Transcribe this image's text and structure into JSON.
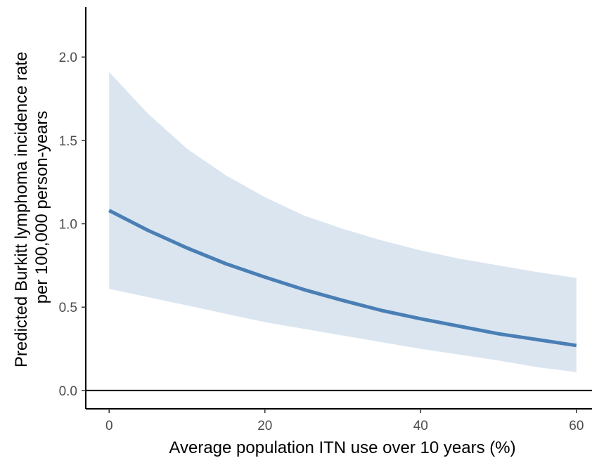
{
  "chart_data": {
    "type": "line",
    "title": "",
    "xlabel": "Average population ITN use over 10 years (%)",
    "ylabel_lines": [
      "Predicted Burkitt lymphoma incidence rate",
      "per 100,000 person-years"
    ],
    "xlim": [
      -3,
      62
    ],
    "ylim": [
      -0.11,
      2.3
    ],
    "x_ticks": [
      0,
      20,
      40,
      60
    ],
    "x_tick_labels": [
      "0",
      "20",
      "40",
      "60"
    ],
    "y_ticks": [
      0.0,
      0.5,
      1.0,
      1.5,
      2.0
    ],
    "y_tick_labels": [
      "0.0",
      "0.5",
      "1.0",
      "1.5",
      "2.0"
    ],
    "reference_line_y": 0,
    "grid": false,
    "legend": "none",
    "colors": {
      "line": "#4a7fb5",
      "ribbon": "#dae5f0",
      "axis": "#000000"
    },
    "series": [
      {
        "x": [
          0,
          5,
          10,
          15,
          20,
          25,
          30,
          35,
          40,
          45,
          50,
          55,
          60
        ],
        "y": [
          1.08,
          0.96,
          0.855,
          0.76,
          0.68,
          0.605,
          0.54,
          0.48,
          0.43,
          0.385,
          0.34,
          0.305,
          0.27
        ],
        "lower": [
          0.61,
          0.56,
          0.51,
          0.46,
          0.41,
          0.37,
          0.33,
          0.29,
          0.25,
          0.215,
          0.18,
          0.14,
          0.11
        ],
        "upper": [
          1.91,
          1.66,
          1.45,
          1.29,
          1.16,
          1.05,
          0.97,
          0.9,
          0.84,
          0.79,
          0.75,
          0.71,
          0.675
        ]
      }
    ]
  }
}
